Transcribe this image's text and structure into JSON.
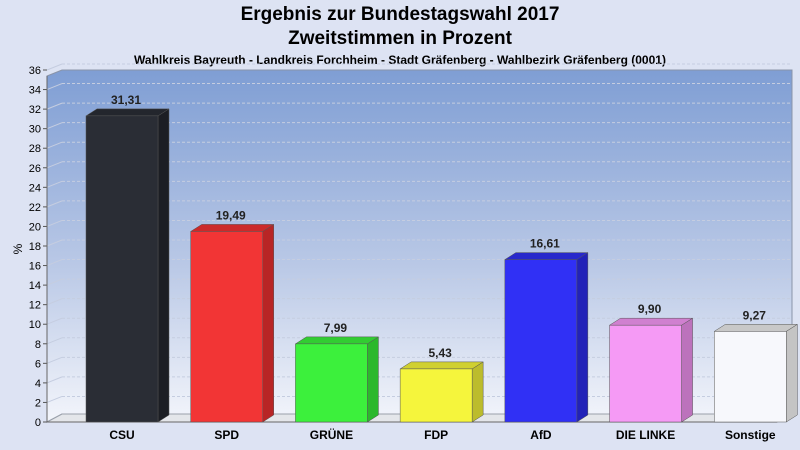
{
  "chart_data": {
    "type": "bar",
    "title": "Ergebnis zur Bundestagswahl 2017",
    "subtitle_line2": "Zweitstimmen in Prozent",
    "subtitle": "Wahlkreis Bayreuth - Landkreis Forchheim - Stadt Gräfenberg - Wahlbezirk Gräfenberg (0001)",
    "ylabel": "%",
    "xlabel": "",
    "ylim": [
      0,
      36
    ],
    "ytick_step": 2,
    "grid": true,
    "categories": [
      "CSU",
      "SPD",
      "GRÜNE",
      "FDP",
      "AfD",
      "DIE LINKE",
      "Sonstige"
    ],
    "values": [
      31.31,
      19.49,
      7.99,
      5.43,
      16.61,
      9.9,
      9.27
    ],
    "value_labels": [
      "31,31",
      "19,49",
      "7,99",
      "5,43",
      "16,61",
      "9,90",
      "9,27"
    ],
    "colors": [
      "#2a2d35",
      "#f23535",
      "#3cf03c",
      "#f5f53c",
      "#3030f5",
      "#f59af5",
      "#f7f8fc"
    ],
    "side_colors": [
      "#1c1e24",
      "#b82525",
      "#2cb82c",
      "#bcbc2c",
      "#2222b8",
      "#bc72bc",
      "#c4c4c4"
    ],
    "top_colors": [
      "#23262d",
      "#cc2a2a",
      "#32cc32",
      "#d0d030",
      "#2828cc",
      "#d080d0",
      "#c8c8c8"
    ]
  }
}
